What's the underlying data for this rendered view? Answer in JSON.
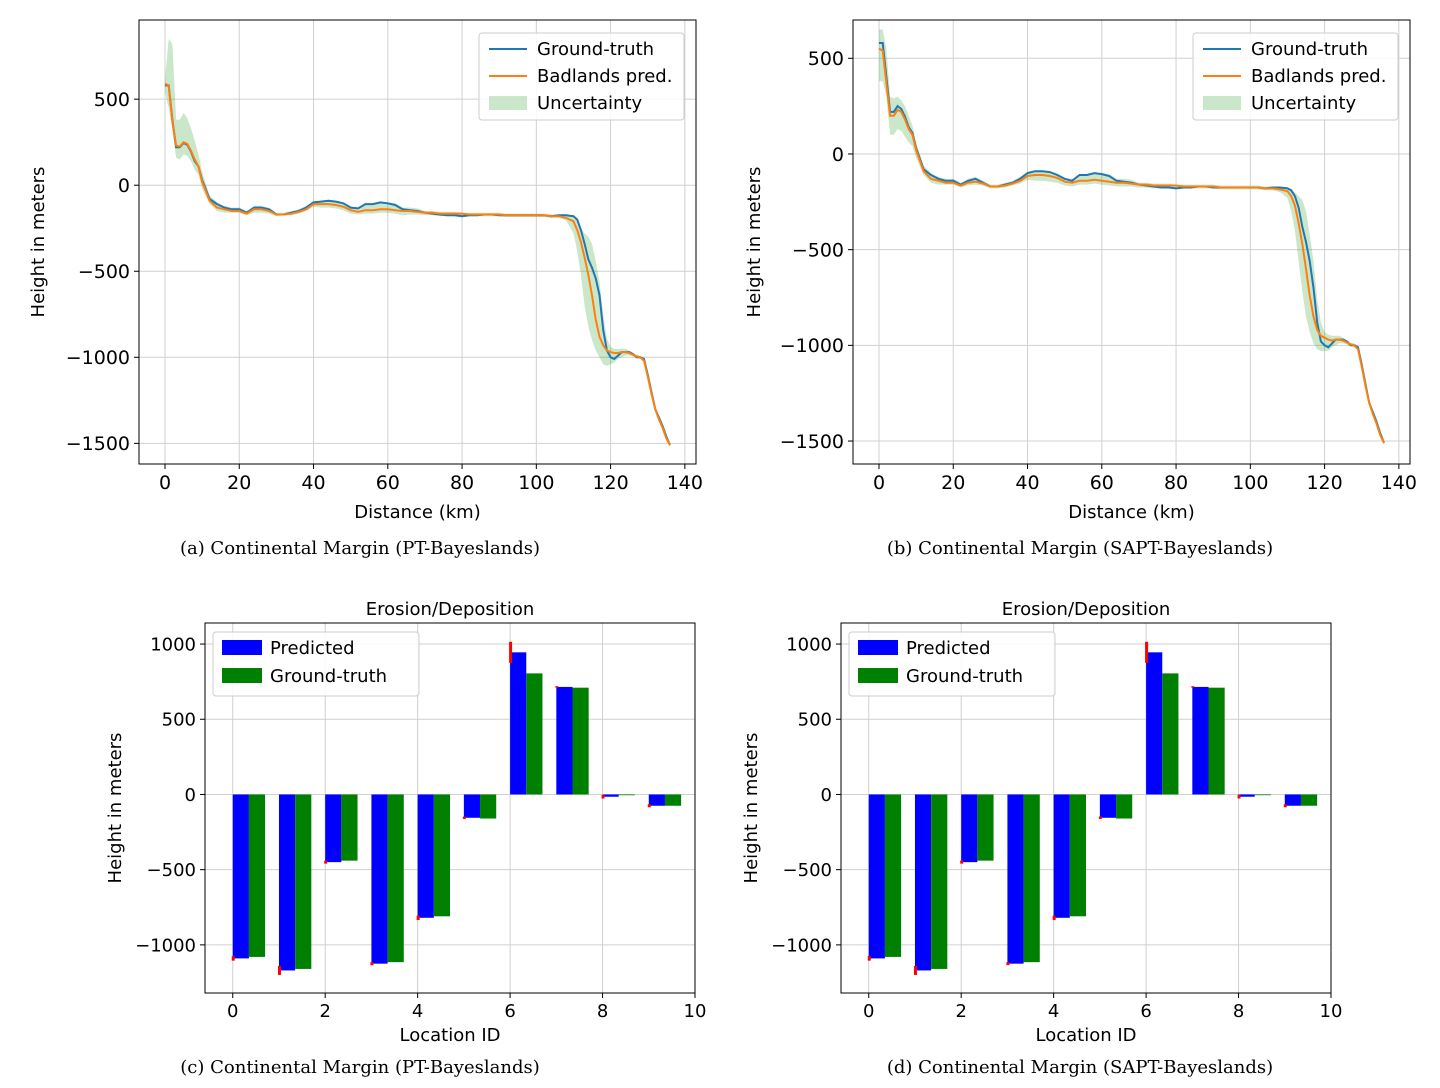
{
  "chart_data": [
    {
      "type": "line",
      "caption": "(a)  Continental Margin (PT-Bayeslands)",
      "xlabel": "Distance (km)",
      "ylabel": "Height in meters",
      "xlim": [
        -7,
        143
      ],
      "ylim": [
        -1620,
        960
      ],
      "xticks": [
        0,
        20,
        40,
        60,
        80,
        100,
        120,
        140
      ],
      "yticks": [
        -1500,
        -1000,
        -500,
        0,
        500
      ],
      "grid": true,
      "legend_position": "top-right",
      "legend": [
        "Ground-truth",
        "Badlands pred.",
        "Uncertainty"
      ],
      "colors": {
        "ground_truth": "#1f77b4",
        "prediction": "#ff7f0e",
        "uncertainty": "#2ca02c"
      },
      "x": [
        0,
        1,
        2,
        3,
        4,
        5,
        6,
        7,
        8,
        9,
        10,
        12,
        14,
        16,
        18,
        20,
        22,
        24,
        26,
        28,
        30,
        32,
        34,
        36,
        38,
        40,
        42,
        44,
        46,
        48,
        50,
        52,
        54,
        56,
        58,
        60,
        62,
        64,
        66,
        68,
        70,
        72,
        74,
        76,
        78,
        80,
        82,
        84,
        86,
        88,
        90,
        92,
        94,
        96,
        98,
        100,
        102,
        104,
        106,
        108,
        110,
        111,
        112,
        113,
        114,
        115,
        116,
        117,
        118,
        119,
        120,
        121,
        122,
        123,
        124,
        125,
        126,
        127,
        128,
        129,
        130,
        131,
        132,
        133,
        134,
        135,
        136
      ],
      "series": [
        {
          "name": "Ground-truth",
          "values": [
            580,
            580,
            380,
            220,
            220,
            245,
            235,
            195,
            140,
            110,
            30,
            -80,
            -110,
            -130,
            -140,
            -140,
            -160,
            -130,
            -130,
            -140,
            -170,
            -170,
            -160,
            -150,
            -130,
            -100,
            -95,
            -90,
            -95,
            -105,
            -130,
            -135,
            -110,
            -110,
            -100,
            -105,
            -115,
            -140,
            -145,
            -150,
            -160,
            -165,
            -170,
            -175,
            -175,
            -180,
            -175,
            -175,
            -170,
            -170,
            -175,
            -175,
            -175,
            -175,
            -175,
            -175,
            -175,
            -180,
            -175,
            -175,
            -180,
            -200,
            -260,
            -340,
            -430,
            -480,
            -540,
            -640,
            -840,
            -960,
            -1000,
            -1010,
            -990,
            -970,
            -970,
            -970,
            -980,
            -1000,
            -1000,
            -1010,
            -1100,
            -1200,
            -1300,
            -1350,
            -1400,
            -1460,
            -1510
          ]
        },
        {
          "name": "Badlands pred.",
          "values": [
            590,
            580,
            370,
            230,
            225,
            250,
            240,
            200,
            150,
            110,
            20,
            -90,
            -130,
            -140,
            -150,
            -150,
            -165,
            -140,
            -140,
            -150,
            -170,
            -170,
            -165,
            -155,
            -140,
            -110,
            -110,
            -110,
            -115,
            -125,
            -145,
            -155,
            -145,
            -145,
            -140,
            -140,
            -145,
            -150,
            -150,
            -155,
            -160,
            -160,
            -165,
            -165,
            -165,
            -165,
            -170,
            -170,
            -170,
            -170,
            -170,
            -175,
            -175,
            -175,
            -175,
            -175,
            -175,
            -180,
            -180,
            -190,
            -210,
            -260,
            -330,
            -420,
            -520,
            -640,
            -780,
            -880,
            -930,
            -960,
            -970,
            -975,
            -975,
            -970,
            -970,
            -975,
            -985,
            -995,
            -1000,
            -1020,
            -1110,
            -1210,
            -1300,
            -1360,
            -1410,
            -1470,
            -1510
          ]
        },
        {
          "name": "Uncertainty",
          "lower": [
            540,
            450,
            320,
            160,
            150,
            180,
            170,
            140,
            90,
            60,
            -20,
            -110,
            -150,
            -160,
            -160,
            -160,
            -175,
            -160,
            -160,
            -165,
            -180,
            -175,
            -175,
            -165,
            -150,
            -125,
            -130,
            -130,
            -135,
            -145,
            -165,
            -170,
            -165,
            -165,
            -160,
            -160,
            -165,
            -175,
            -170,
            -170,
            -175,
            -175,
            -180,
            -180,
            -180,
            -180,
            -180,
            -180,
            -180,
            -180,
            -180,
            -185,
            -185,
            -185,
            -185,
            -185,
            -185,
            -190,
            -190,
            -205,
            -280,
            -380,
            -520,
            -700,
            -820,
            -900,
            -960,
            -1000,
            -1040,
            -1050,
            -1040,
            -1030,
            -1010,
            -1000,
            -990,
            -990,
            -995,
            -1005,
            -1010,
            -1030,
            -1120,
            -1220,
            -1310,
            -1370,
            -1420,
            -1480,
            -1520
          ],
          "upper": [
            620,
            850,
            820,
            380,
            380,
            420,
            390,
            330,
            260,
            180,
            80,
            -60,
            -100,
            -120,
            -130,
            -130,
            -150,
            -120,
            -120,
            -130,
            -160,
            -160,
            -150,
            -140,
            -120,
            -95,
            -90,
            -85,
            -90,
            -100,
            -125,
            -130,
            -115,
            -110,
            -100,
            -100,
            -105,
            -130,
            -130,
            -135,
            -150,
            -150,
            -155,
            -155,
            -155,
            -160,
            -160,
            -160,
            -160,
            -160,
            -160,
            -165,
            -165,
            -165,
            -165,
            -165,
            -165,
            -170,
            -170,
            -170,
            -180,
            -200,
            -250,
            -280,
            -300,
            -340,
            -440,
            -560,
            -750,
            -890,
            -940,
            -950,
            -950,
            -950,
            -950,
            -960,
            -975,
            -985,
            -990,
            -1005,
            -1095,
            -1195,
            -1290,
            -1345,
            -1395,
            -1455,
            -1505
          ]
        }
      ]
    },
    {
      "type": "line",
      "caption": "(b)  Continental Margin (SAPT-Bayeslands)",
      "xlabel": "Distance (km)",
      "ylabel": "Height in meters",
      "xlim": [
        -7,
        143
      ],
      "ylim": [
        -1620,
        700
      ],
      "xticks": [
        0,
        20,
        40,
        60,
        80,
        100,
        120,
        140
      ],
      "yticks": [
        -1500,
        -1000,
        -500,
        0,
        500
      ],
      "grid": true,
      "legend_position": "top-right",
      "legend": [
        "Ground-truth",
        "Badlands pred.",
        "Uncertainty"
      ],
      "colors": {
        "ground_truth": "#1f77b4",
        "prediction": "#ff7f0e",
        "uncertainty": "#2ca02c"
      },
      "x": [
        0,
        1,
        2,
        3,
        4,
        5,
        6,
        7,
        8,
        9,
        10,
        12,
        14,
        16,
        18,
        20,
        22,
        24,
        26,
        28,
        30,
        32,
        34,
        36,
        38,
        40,
        42,
        44,
        46,
        48,
        50,
        52,
        54,
        56,
        58,
        60,
        62,
        64,
        66,
        68,
        70,
        72,
        74,
        76,
        78,
        80,
        82,
        84,
        86,
        88,
        90,
        92,
        94,
        96,
        98,
        100,
        102,
        104,
        106,
        108,
        110,
        111,
        112,
        113,
        114,
        115,
        116,
        117,
        118,
        119,
        120,
        121,
        122,
        123,
        124,
        125,
        126,
        127,
        128,
        129,
        130,
        131,
        132,
        133,
        134,
        135,
        136
      ],
      "series": [
        {
          "name": "Ground-truth",
          "values": [
            580,
            580,
            400,
            220,
            220,
            250,
            235,
            195,
            140,
            110,
            30,
            -80,
            -110,
            -130,
            -140,
            -140,
            -160,
            -140,
            -130,
            -150,
            -170,
            -170,
            -160,
            -150,
            -130,
            -100,
            -90,
            -90,
            -95,
            -110,
            -130,
            -140,
            -110,
            -110,
            -100,
            -105,
            -115,
            -140,
            -145,
            -150,
            -160,
            -165,
            -170,
            -175,
            -175,
            -180,
            -175,
            -175,
            -170,
            -170,
            -175,
            -175,
            -175,
            -175,
            -175,
            -175,
            -175,
            -180,
            -175,
            -175,
            -180,
            -190,
            -220,
            -280,
            -380,
            -460,
            -560,
            -700,
            -880,
            -980,
            -1000,
            -1010,
            -990,
            -970,
            -970,
            -970,
            -980,
            -1000,
            -1000,
            -1010,
            -1100,
            -1200,
            -1300,
            -1350,
            -1400,
            -1460,
            -1510
          ]
        },
        {
          "name": "Badlands pred.",
          "values": [
            550,
            540,
            370,
            200,
            200,
            230,
            220,
            180,
            130,
            100,
            20,
            -90,
            -130,
            -140,
            -150,
            -150,
            -165,
            -150,
            -145,
            -155,
            -170,
            -170,
            -165,
            -155,
            -140,
            -115,
            -110,
            -110,
            -115,
            -125,
            -145,
            -150,
            -140,
            -140,
            -135,
            -140,
            -145,
            -150,
            -150,
            -155,
            -160,
            -160,
            -165,
            -165,
            -165,
            -165,
            -170,
            -170,
            -170,
            -170,
            -170,
            -175,
            -175,
            -175,
            -175,
            -175,
            -175,
            -180,
            -180,
            -185,
            -195,
            -220,
            -270,
            -360,
            -470,
            -600,
            -740,
            -850,
            -920,
            -950,
            -960,
            -970,
            -975,
            -970,
            -970,
            -975,
            -985,
            -995,
            -1000,
            -1020,
            -1110,
            -1210,
            -1300,
            -1360,
            -1410,
            -1470,
            -1510
          ]
        },
        {
          "name": "Uncertainty",
          "lower": [
            380,
            380,
            300,
            100,
            100,
            130,
            120,
            90,
            60,
            40,
            -20,
            -110,
            -150,
            -160,
            -160,
            -160,
            -175,
            -165,
            -160,
            -165,
            -180,
            -180,
            -175,
            -165,
            -155,
            -135,
            -140,
            -140,
            -145,
            -150,
            -165,
            -170,
            -160,
            -160,
            -155,
            -160,
            -165,
            -170,
            -170,
            -170,
            -175,
            -175,
            -180,
            -180,
            -180,
            -180,
            -180,
            -180,
            -180,
            -180,
            -180,
            -185,
            -185,
            -185,
            -185,
            -185,
            -185,
            -190,
            -190,
            -200,
            -230,
            -300,
            -400,
            -560,
            -720,
            -850,
            -930,
            -990,
            -1020,
            -1030,
            -1030,
            -1030,
            -1010,
            -1000,
            -990,
            -990,
            -995,
            -1005,
            -1010,
            -1030,
            -1120,
            -1220,
            -1310,
            -1370,
            -1420,
            -1480,
            -1520
          ],
          "upper": [
            650,
            650,
            550,
            300,
            290,
            300,
            280,
            250,
            200,
            150,
            60,
            -60,
            -100,
            -120,
            -130,
            -130,
            -150,
            -130,
            -120,
            -140,
            -160,
            -160,
            -150,
            -140,
            -120,
            -95,
            -90,
            -85,
            -90,
            -100,
            -125,
            -130,
            -115,
            -110,
            -100,
            -100,
            -105,
            -130,
            -130,
            -135,
            -150,
            -150,
            -155,
            -155,
            -155,
            -160,
            -160,
            -160,
            -160,
            -160,
            -160,
            -165,
            -165,
            -165,
            -165,
            -165,
            -165,
            -170,
            -170,
            -170,
            -180,
            -190,
            -200,
            -220,
            -240,
            -300,
            -420,
            -560,
            -760,
            -880,
            -930,
            -945,
            -950,
            -950,
            -950,
            -960,
            -975,
            -985,
            -990,
            -1005,
            -1095,
            -1195,
            -1290,
            -1345,
            -1395,
            -1455,
            -1505
          ]
        }
      ]
    },
    {
      "type": "bar",
      "title": "Erosion/Deposition",
      "caption": "(c)  Continental Margin (PT-Bayeslands)",
      "xlabel": "Location ID",
      "ylabel": "Height in meters",
      "xlim": [
        -0.6,
        10
      ],
      "ylim": [
        -1320,
        1140
      ],
      "xticks": [
        0,
        2,
        4,
        6,
        8,
        10
      ],
      "yticks": [
        -1000,
        -500,
        0,
        500,
        1000
      ],
      "grid": true,
      "legend_position": "top-left",
      "categories": [
        0,
        1,
        2,
        3,
        4,
        5,
        6,
        7,
        8,
        9
      ],
      "colors": {
        "predicted": "#0000ff",
        "ground_truth": "#008000",
        "error": "#ff0000"
      },
      "series": [
        {
          "name": "Predicted",
          "values": [
            -1090,
            -1170,
            -450,
            -1125,
            -820,
            -155,
            945,
            715,
            -15,
            -75
          ],
          "error": [
            15,
            30,
            10,
            10,
            15,
            8,
            70,
            5,
            12,
            10
          ]
        },
        {
          "name": " Ground-truth",
          "values": [
            -1080,
            -1160,
            -440,
            -1115,
            -810,
            -160,
            805,
            710,
            -5,
            -75
          ]
        }
      ]
    },
    {
      "type": "bar",
      "title": "Erosion/Deposition",
      "caption": "(d)  Continental Margin (SAPT-Bayeslands)",
      "xlabel": "Location ID",
      "ylabel": "Height in meters",
      "xlim": [
        -0.6,
        10
      ],
      "ylim": [
        -1320,
        1140
      ],
      "xticks": [
        0,
        2,
        4,
        6,
        8,
        10
      ],
      "yticks": [
        -1000,
        -500,
        0,
        500,
        1000
      ],
      "grid": true,
      "legend_position": "top-left",
      "categories": [
        0,
        1,
        2,
        3,
        4,
        5,
        6,
        7,
        8,
        9
      ],
      "colors": {
        "predicted": "#0000ff",
        "ground_truth": "#008000",
        "error": "#ff0000"
      },
      "series": [
        {
          "name": "Predicted",
          "values": [
            -1090,
            -1170,
            -450,
            -1125,
            -820,
            -155,
            945,
            715,
            -15,
            -75
          ],
          "error": [
            15,
            30,
            10,
            10,
            15,
            8,
            70,
            5,
            12,
            10
          ]
        },
        {
          "name": " Ground-truth",
          "values": [
            -1080,
            -1160,
            -440,
            -1115,
            -810,
            -160,
            805,
            710,
            -5,
            -75
          ]
        }
      ]
    }
  ]
}
